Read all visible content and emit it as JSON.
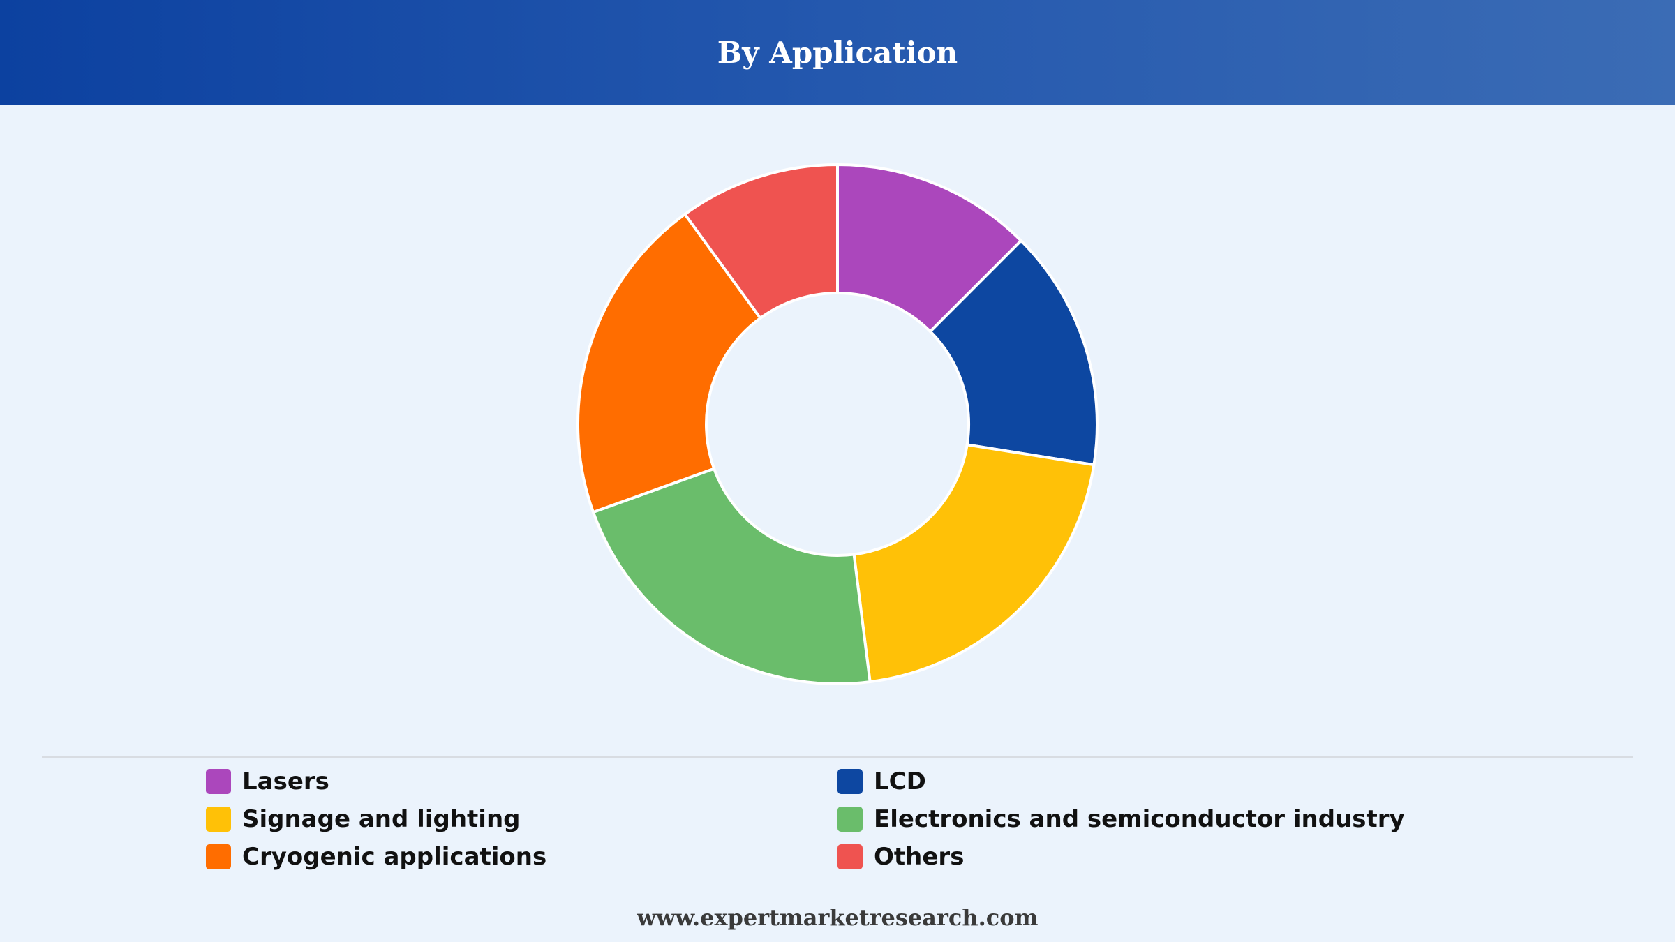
{
  "header": {
    "title": "By Application"
  },
  "chart_data": {
    "type": "pie",
    "donut": true,
    "categories": [
      "Lasers",
      "LCD",
      "Signage and lighting",
      "Electronics and semiconductor industry",
      "Cryogenic applications",
      "Others"
    ],
    "values": [
      12.5,
      15.0,
      20.5,
      21.5,
      20.5,
      10.0
    ],
    "colors": [
      "#ab47bc",
      "#0d47a1",
      "#ffc107",
      "#6abd6b",
      "#ff6d00",
      "#ef5350"
    ],
    "legend_position": "bottom",
    "title": "By Application"
  },
  "legend": {
    "items": [
      {
        "label": "Lasers",
        "color": "#ab47bc"
      },
      {
        "label": "LCD",
        "color": "#0d47a1"
      },
      {
        "label": "Signage and lighting",
        "color": "#ffc107"
      },
      {
        "label": "Electronics and semiconductor industry",
        "color": "#6abd6b"
      },
      {
        "label": "Cryogenic applications",
        "color": "#ff6d00"
      },
      {
        "label": "Others",
        "color": "#ef5350"
      }
    ]
  },
  "footer": {
    "source": "www.expertmarketresearch.com"
  }
}
